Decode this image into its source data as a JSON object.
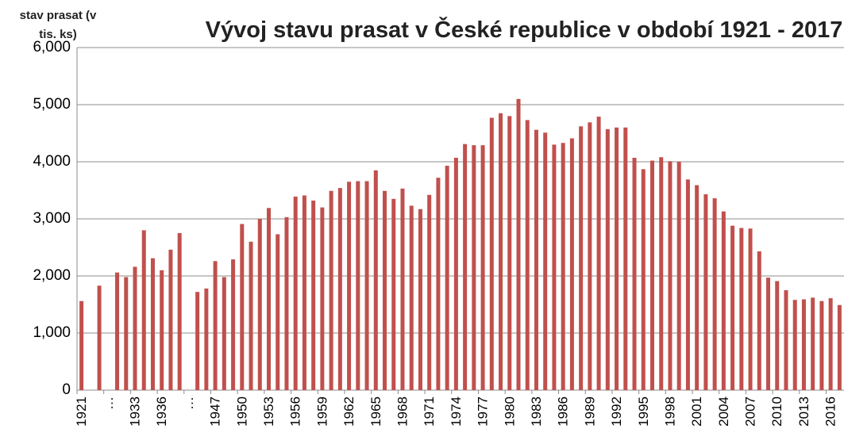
{
  "chart_data": {
    "type": "bar",
    "title": "Vývoj stavu prasat v České republice v období 1921 - 2017",
    "y_label": "stav prasat (v tis. ks)",
    "color": "#c0504d",
    "grid": true,
    "ylim": [
      0,
      6000
    ],
    "yticks": [
      0,
      {
        "value": 1000,
        "label": "1,000"
      },
      {
        "value": 2000,
        "label": "2,000"
      },
      {
        "value": 3000,
        "label": "3,000"
      },
      {
        "value": 4000,
        "label": "4,000"
      },
      {
        "value": 5000,
        "label": "5,000"
      },
      {
        "value": 6000,
        "label": "6,000"
      }
    ],
    "categories": [
      "1921",
      null,
      null,
      "…",
      null,
      null,
      "1933",
      null,
      null,
      "1936",
      null,
      null,
      "…",
      null,
      null,
      "1947",
      null,
      null,
      "1950",
      null,
      null,
      "1953",
      null,
      null,
      "1956",
      null,
      null,
      "1959",
      null,
      null,
      "1962",
      null,
      null,
      "1965",
      null,
      null,
      "1968",
      null,
      null,
      "1971",
      null,
      null,
      "1974",
      null,
      null,
      "1977",
      null,
      null,
      "1980",
      null,
      null,
      "1983",
      null,
      null,
      "1986",
      null,
      null,
      "1989",
      null,
      null,
      "1992",
      null,
      null,
      "1995",
      null,
      null,
      "1998",
      null,
      null,
      "2001",
      null,
      null,
      "2004",
      null,
      null,
      "2007",
      null,
      null,
      "2010",
      null,
      null,
      "2013",
      null,
      null,
      "2016",
      null
    ],
    "values": [
      1560,
      null,
      1830,
      null,
      2060,
      1980,
      2160,
      2800,
      2310,
      2100,
      2460,
      2750,
      null,
      1720,
      1780,
      2260,
      1980,
      2290,
      2910,
      2600,
      3000,
      3190,
      2730,
      3030,
      3390,
      3410,
      3320,
      3200,
      3490,
      3540,
      3650,
      3660,
      3660,
      3850,
      3490,
      3350,
      3530,
      3230,
      3170,
      3420,
      3720,
      3930,
      4070,
      4310,
      4290,
      4290,
      4770,
      4850,
      4800,
      5100,
      4730,
      4560,
      4510,
      4300,
      4330,
      4410,
      4620,
      4690,
      4790,
      4570,
      4600,
      4600,
      4070,
      3870,
      4020,
      4080,
      4010,
      4000,
      3690,
      3590,
      3430,
      3360,
      3130,
      2880,
      2840,
      2830,
      2430,
      1970,
      1910,
      1750,
      1580,
      1590,
      1620,
      1560,
      1610,
      1490
    ]
  }
}
